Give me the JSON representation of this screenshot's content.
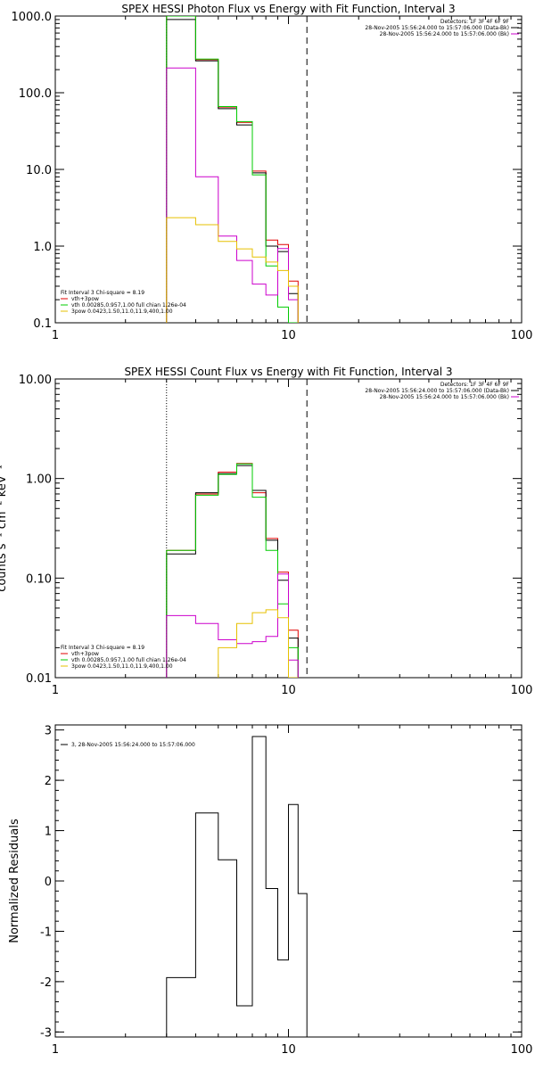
{
  "chart_data": [
    {
      "type": "line",
      "title": "SPEX HESSI Photon Flux vs Energy with Fit Function, Interval 3",
      "xlabel": "",
      "ylabel": "",
      "xscale": "log",
      "yscale": "log",
      "xlim": [
        1,
        100
      ],
      "ylim": [
        0.1,
        1000
      ],
      "x_tick_labels": [
        "1",
        "10",
        "100"
      ],
      "y_tick_labels": [
        "0.1",
        "1.0",
        "10.0",
        "100.0",
        "1000.0"
      ],
      "y_ticks": [
        0.1,
        1,
        10,
        100,
        1000
      ],
      "vlines": [
        {
          "x": 3,
          "style": "dotted",
          "color": "#000000"
        },
        {
          "x": 12,
          "style": "dashed",
          "color": "#000000"
        }
      ],
      "info_lines": [
        {
          "text": "Detectors: 1F 3F 4F 6F 9F",
          "color": "#000000"
        },
        {
          "text": "28-Nov-2005 15:56:24.000 to 15:57:06.000 (Data-Bk)",
          "color": "#000000"
        },
        {
          "text": "28-Nov-2005 15:56:24.000 to 15:57:06.000 (Bk)",
          "color": "#cc00cc"
        }
      ],
      "legend_lines": [
        {
          "text": "Fit Interval 3   Chi-square = 8.19",
          "color": "#000000"
        },
        {
          "text": "vth+3pow",
          "color": "#e00000"
        },
        {
          "text": "vth 0.00285,0.957,1.00  full chian 1.26e-04",
          "color": "#00cc00"
        },
        {
          "text": "3pow 0.0423,1.50,11.0,11.9,400,1.00",
          "color": "#e6c000"
        }
      ],
      "edges": [
        3,
        4,
        5,
        6,
        7,
        8,
        9,
        10,
        11,
        12
      ],
      "series": [
        {
          "color": "#e00000",
          "values": [
            1100,
            270,
            65,
            41,
            9.5,
            1.2,
            1.05,
            0.35
          ]
        },
        {
          "color": "#000000",
          "values": [
            900,
            260,
            62,
            38,
            9.0,
            1.0,
            0.85,
            0.24
          ]
        },
        {
          "color": "#00cc00",
          "values": [
            1200,
            275,
            66,
            42,
            8.5,
            0.55,
            0.16,
            0.08
          ]
        },
        {
          "color": "#cc00cc",
          "values": [
            210,
            8.0,
            1.35,
            0.65,
            0.32,
            0.23,
            0.93,
            0.2
          ]
        },
        {
          "color": "#e6c000",
          "values": [
            2.35,
            1.9,
            1.15,
            0.92,
            0.72,
            0.62,
            0.48,
            0.3
          ]
        }
      ]
    },
    {
      "type": "line",
      "title": "SPEX HESSI Count Flux vs Energy with Fit Function, Interval 3",
      "xlabel": "",
      "ylabel": "counts s⁻¹ cm⁻² keV⁻¹",
      "xscale": "log",
      "yscale": "log",
      "xlim": [
        1,
        100
      ],
      "ylim": [
        0.01,
        10
      ],
      "x_tick_labels": [
        "1",
        "10",
        "100"
      ],
      "y_tick_labels": [
        "0.01",
        "0.10",
        "1.00",
        "10.00"
      ],
      "y_ticks": [
        0.01,
        0.1,
        1,
        10
      ],
      "vlines": [
        {
          "x": 3,
          "style": "dotted",
          "color": "#000000"
        },
        {
          "x": 12,
          "style": "dashed",
          "color": "#000000"
        }
      ],
      "info_lines": [
        {
          "text": "Detectors: 1F 3F 4F 6F 9F",
          "color": "#000000"
        },
        {
          "text": "28-Nov-2005 15:56:24.000 to 15:57:06.000 (Data-Bk)",
          "color": "#000000"
        },
        {
          "text": "28-Nov-2005 15:56:24.000 to 15:57:06.000 (Bk)",
          "color": "#cc00cc"
        }
      ],
      "legend_lines": [
        {
          "text": "Fit Interval 3   Chi-square = 8.19",
          "color": "#000000"
        },
        {
          "text": "vth+3pow",
          "color": "#e00000"
        },
        {
          "text": "vth 0.00285,0.957,1.00  full chian 1.26e-04",
          "color": "#00cc00"
        },
        {
          "text": "3pow 0.0423,1.50,11.0,11.9,400,1.00",
          "color": "#e6c000"
        }
      ],
      "edges": [
        3,
        4,
        5,
        6,
        7,
        8,
        9,
        10,
        11,
        12
      ],
      "series": [
        {
          "color": "#e00000",
          "values": [
            0.19,
            0.7,
            1.16,
            1.42,
            0.72,
            0.25,
            0.115,
            0.03
          ]
        },
        {
          "color": "#000000",
          "values": [
            0.175,
            0.72,
            1.12,
            1.35,
            0.76,
            0.24,
            0.095,
            0.025
          ]
        },
        {
          "color": "#00cc00",
          "values": [
            0.19,
            0.68,
            1.1,
            1.4,
            0.65,
            0.19,
            0.055,
            0.02
          ]
        },
        {
          "color": "#cc00cc",
          "values": [
            0.042,
            0.035,
            0.024,
            0.022,
            0.023,
            0.026,
            0.11,
            0.015
          ]
        },
        {
          "color": "#e6c000",
          "values": [
            null,
            null,
            0.02,
            0.035,
            0.045,
            0.048,
            0.04,
            0.008
          ]
        }
      ]
    },
    {
      "type": "line",
      "title": "",
      "xlabel": "",
      "ylabel": "Normalized Residuals",
      "xscale": "log",
      "yscale": "linear",
      "xlim": [
        1,
        100
      ],
      "ylim": [
        -3.1,
        3.1
      ],
      "x_tick_labels": [
        "1",
        "10",
        "100"
      ],
      "y_tick_labels": [
        "-3",
        "-2",
        "-1",
        "0",
        "1",
        "2",
        "3"
      ],
      "y_ticks": [
        -3,
        -2,
        -1,
        0,
        1,
        2,
        3
      ],
      "vlines": [],
      "info_lines": [],
      "legend_lines": [
        {
          "text": "3, 28-Nov-2005 15:56:24.000 to 15:57:06.000",
          "color": "#000000"
        }
      ],
      "edges": [
        3,
        4,
        5,
        6,
        7,
        8,
        9,
        10,
        11,
        12
      ],
      "series": [
        {
          "color": "#000000",
          "values": [
            -1.92,
            1.35,
            0.42,
            -2.48,
            2.87,
            -0.15,
            -1.57,
            1.52,
            -0.25
          ]
        }
      ]
    }
  ]
}
